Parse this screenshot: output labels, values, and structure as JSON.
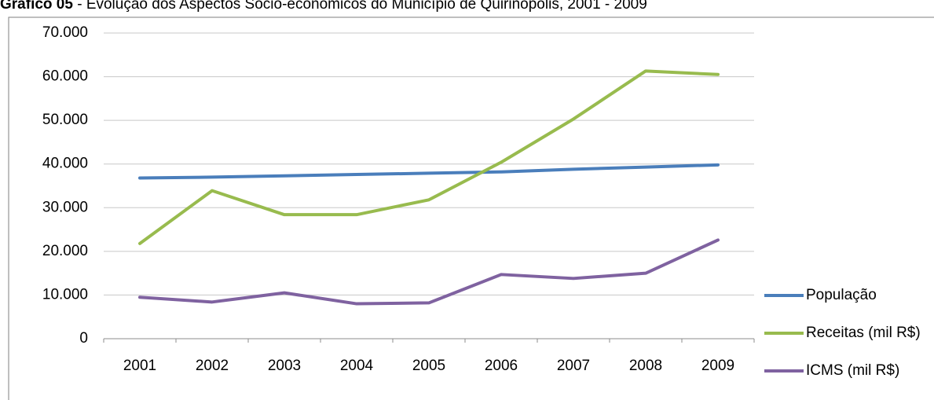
{
  "title": {
    "bold": "Gráfico 05",
    "rest": " - Evolução dos Aspectos Sócio-econômicos do Município de Quirinópolis, 2001 - 2009"
  },
  "chart_data": {
    "type": "line",
    "categories": [
      "2001",
      "2002",
      "2003",
      "2004",
      "2005",
      "2006",
      "2007",
      "2008",
      "2009"
    ],
    "ylim": [
      0,
      70000
    ],
    "yticks": [
      0,
      10000,
      20000,
      30000,
      40000,
      50000,
      60000,
      70000
    ],
    "ytick_labels": [
      "0",
      "10.000",
      "20.000",
      "30.000",
      "40.000",
      "50.000",
      "60.000",
      "70.000"
    ],
    "grid": true,
    "legend_position": "right",
    "series": [
      {
        "name": "População",
        "color": "#4a7ebb",
        "values": [
          36800,
          37000,
          37300,
          37600,
          37900,
          38200,
          38800,
          39300,
          39800
        ]
      },
      {
        "name": "Receitas (mil R$)",
        "color": "#98bb4e",
        "values": [
          21800,
          33900,
          28400,
          28400,
          31800,
          40400,
          50300,
          61300,
          60500
        ]
      },
      {
        "name": "ICMS (mil R$)",
        "color": "#7f62a0",
        "values": [
          9500,
          8400,
          10500,
          8000,
          8200,
          14700,
          13800,
          15000,
          22600
        ]
      }
    ]
  }
}
